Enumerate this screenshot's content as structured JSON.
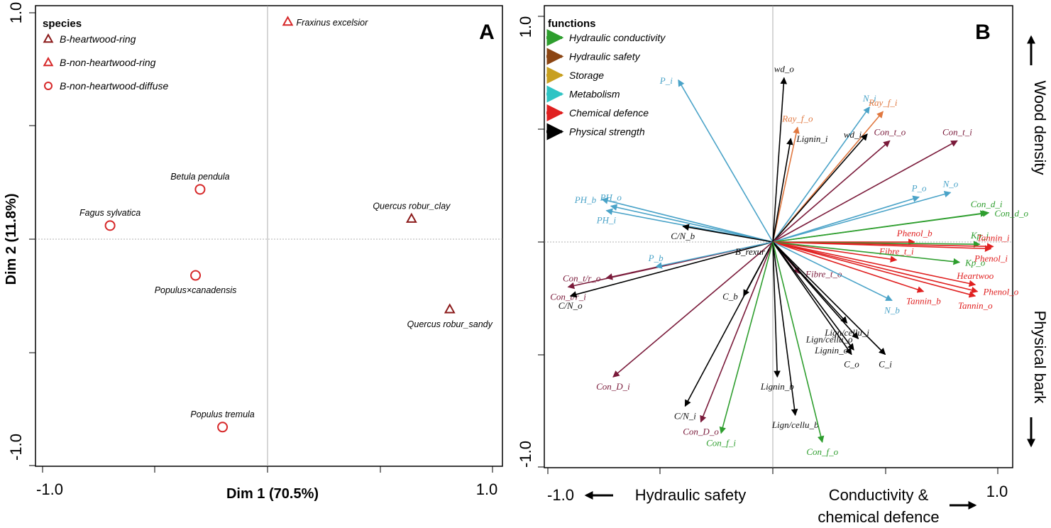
{
  "chart_data": [
    {
      "type": "scatter",
      "panel_label": "A",
      "xlabel": "Dim 1 (70.5%)",
      "ylabel": "Dim 2 (11.8%)",
      "xlim": [
        -1.0,
        1.0
      ],
      "ylim": [
        -1.0,
        1.0
      ],
      "xticks": [
        "-1.0",
        "1.0"
      ],
      "yticks": [
        "1.0",
        "-1.0"
      ],
      "zero_lines": true,
      "legend": {
        "title": "species",
        "position": "top-left",
        "entries": [
          {
            "label": "B-heartwood-ring",
            "marker": "triangle",
            "color": "#8b1a1a"
          },
          {
            "label": "B-non-heartwood-ring",
            "marker": "triangle",
            "color": "#d62728"
          },
          {
            "label": "B-non-heartwood-diffuse",
            "marker": "circle",
            "color": "#d62728"
          }
        ]
      },
      "points": [
        {
          "name": "Fraxinus excelsior",
          "x": 0.09,
          "y": 0.96,
          "marker": "triangle",
          "color": "#d62728",
          "label_side": "right"
        },
        {
          "name": "Betula pendula",
          "x": -0.3,
          "y": 0.22,
          "marker": "circle",
          "color": "#d62728",
          "label_side": "top"
        },
        {
          "name": "Fagus sylvatica",
          "x": -0.7,
          "y": 0.06,
          "marker": "circle",
          "color": "#d62728",
          "label_side": "top"
        },
        {
          "name": "Quercus robur_clay",
          "x": 0.64,
          "y": 0.09,
          "marker": "triangle",
          "color": "#8b1a1a",
          "label_side": "top"
        },
        {
          "name": "Populus×canadensis",
          "x": -0.32,
          "y": -0.16,
          "marker": "circle",
          "color": "#d62728",
          "label_side": "bottom"
        },
        {
          "name": "Quercus robur_sandy",
          "x": 0.81,
          "y": -0.31,
          "marker": "triangle",
          "color": "#8b1a1a",
          "label_side": "bottom"
        },
        {
          "name": "Populus tremula",
          "x": -0.2,
          "y": -0.83,
          "marker": "circle",
          "color": "#d62728",
          "label_side": "top"
        }
      ]
    },
    {
      "type": "scatter",
      "subtype": "biplot-arrows",
      "panel_label": "B",
      "xlim": [
        -1.0,
        1.0
      ],
      "ylim": [
        -1.0,
        1.0
      ],
      "xticks": [
        "-1.0",
        "1.0"
      ],
      "yticks": [
        "1.0",
        "-1.0"
      ],
      "zero_lines": true,
      "side_labels": {
        "top_right": "Wood density",
        "bottom_right": "Physical bark",
        "bottom_left": "Hydraulic safety",
        "bottom_right_1": "Conductivity &",
        "bottom_right_2": "chemical defence"
      },
      "legend": {
        "title": "functions",
        "position": "top-left",
        "entries": [
          {
            "label": "Hydraulic conductivity",
            "color": "#2e9e2e"
          },
          {
            "label": "Hydraulic safety",
            "color": "#8b4513"
          },
          {
            "label": "Storage",
            "color": "#c8a020"
          },
          {
            "label": "Metabolism",
            "color": "#2ec4c4"
          },
          {
            "label": "Chemical defence",
            "color": "#e02020"
          },
          {
            "label": "Physical strength",
            "color": "#000000"
          }
        ]
      },
      "center_label": "B_rexur",
      "vectors": [
        {
          "name": "P_i",
          "x": -0.42,
          "y": 0.72,
          "color": "#4aa3c8",
          "label_side": "left"
        },
        {
          "name": "wd_o",
          "x": 0.05,
          "y": 0.73,
          "color": "#000000",
          "label_side": "top"
        },
        {
          "name": "N_i",
          "x": 0.43,
          "y": 0.6,
          "color": "#4aa3c8",
          "label_side": "top"
        },
        {
          "name": "Ray_f_i",
          "x": 0.49,
          "y": 0.58,
          "color": "#e07840",
          "label_side": "top"
        },
        {
          "name": "Ray_f_o",
          "x": 0.11,
          "y": 0.51,
          "color": "#e07840",
          "label_side": "top"
        },
        {
          "name": "wd_i",
          "x": 0.42,
          "y": 0.48,
          "color": "#000000",
          "label_side": "left"
        },
        {
          "name": "Con_t_o",
          "x": 0.52,
          "y": 0.45,
          "color": "#7a1a3a",
          "label_side": "top"
        },
        {
          "name": "Con_t_i",
          "x": 0.82,
          "y": 0.45,
          "color": "#7a1a3a",
          "label_side": "top"
        },
        {
          "name": "Lignin_i",
          "x": 0.08,
          "y": 0.46,
          "color": "#000000",
          "label_side": "right"
        },
        {
          "name": "PH_b",
          "x": -0.76,
          "y": 0.19,
          "color": "#4aa3c8",
          "label_side": "left"
        },
        {
          "name": "PH_o",
          "x": -0.72,
          "y": 0.16,
          "color": "#4aa3c8",
          "label_side": "top"
        },
        {
          "name": "PH_i",
          "x": -0.74,
          "y": 0.14,
          "color": "#4aa3c8",
          "label_side": "bottom"
        },
        {
          "name": "P_o",
          "x": 0.65,
          "y": 0.2,
          "color": "#4aa3c8",
          "label_side": "top"
        },
        {
          "name": "N_o",
          "x": 0.79,
          "y": 0.22,
          "color": "#4aa3c8",
          "label_side": "top"
        },
        {
          "name": "Con_d_i",
          "x": 0.95,
          "y": 0.13,
          "color": "#2e9e2e",
          "label_side": "top"
        },
        {
          "name": "Con_d_o",
          "x": 0.96,
          "y": 0.13,
          "color": "#2e9e2e",
          "label_side": "right"
        },
        {
          "name": "C/N_b",
          "x": -0.4,
          "y": 0.07,
          "color": "#000000",
          "label_side": "bottom"
        },
        {
          "name": "Phenol_b",
          "x": 0.63,
          "y": 0.0,
          "color": "#e02020",
          "label_side": "top"
        },
        {
          "name": "Kp_i",
          "x": 0.92,
          "y": -0.01,
          "color": "#2e9e2e",
          "label_side": "top"
        },
        {
          "name": "Tannin_i",
          "x": 0.98,
          "y": -0.02,
          "color": "#e02020",
          "label_side": "top"
        },
        {
          "name": "Phenol_i",
          "x": 0.97,
          "y": -0.03,
          "color": "#e02020",
          "label_side": "bottom"
        },
        {
          "name": "Fibre_t_i",
          "x": 0.55,
          "y": -0.08,
          "color": "#e02020",
          "label_side": "top"
        },
        {
          "name": "Kp_o",
          "x": 0.83,
          "y": -0.09,
          "color": "#2e9e2e",
          "label_side": "right"
        },
        {
          "name": "Heartwoo",
          "x": 0.9,
          "y": -0.19,
          "color": "#e02020",
          "label_side": "top"
        },
        {
          "name": "Phenol_o",
          "x": 0.91,
          "y": -0.22,
          "color": "#e02020",
          "label_side": "right"
        },
        {
          "name": "Tannin_b",
          "x": 0.67,
          "y": -0.22,
          "color": "#e02020",
          "label_side": "bottom"
        },
        {
          "name": "Tannin_o",
          "x": 0.9,
          "y": -0.24,
          "color": "#e02020",
          "label_side": "bottom"
        },
        {
          "name": "Fibre_t_o",
          "x": 0.12,
          "y": -0.14,
          "color": "#7a1a3a",
          "label_side": "right"
        },
        {
          "name": "N_b",
          "x": 0.53,
          "y": -0.26,
          "color": "#4aa3c8",
          "label_side": "bottom"
        },
        {
          "name": "Lign/cellu_i",
          "x": 0.33,
          "y": -0.36,
          "color": "#000000",
          "label_side": "bottom"
        },
        {
          "name": "Lign/cellu_o",
          "x": 0.38,
          "y": -0.43,
          "color": "#000000",
          "label_side": "left"
        },
        {
          "name": "Lignin_o",
          "x": 0.36,
          "y": -0.48,
          "color": "#000000",
          "label_side": "left"
        },
        {
          "name": "C_o",
          "x": 0.35,
          "y": -0.5,
          "color": "#000000",
          "label_side": "bottom"
        },
        {
          "name": "C_i",
          "x": 0.5,
          "y": -0.5,
          "color": "#000000",
          "label_side": "bottom"
        },
        {
          "name": "Con_t/r_o",
          "x": -0.74,
          "y": -0.16,
          "color": "#7a1a3a",
          "label_side": "left"
        },
        {
          "name": "Con_t/r_i",
          "x": -0.91,
          "y": -0.2,
          "color": "#7a1a3a",
          "label_side": "bottom"
        },
        {
          "name": "C/N_o",
          "x": -0.9,
          "y": -0.24,
          "color": "#000000",
          "label_side": "bottom"
        },
        {
          "name": "P_b",
          "x": -0.52,
          "y": -0.11,
          "color": "#4aa3c8",
          "label_side": "top"
        },
        {
          "name": "C_b",
          "x": -0.13,
          "y": -0.24,
          "color": "#000000",
          "label_side": "left"
        },
        {
          "name": "Con_D_i",
          "x": -0.71,
          "y": -0.6,
          "color": "#7a1a3a",
          "label_side": "bottom"
        },
        {
          "name": "C/N_i",
          "x": -0.39,
          "y": -0.73,
          "color": "#000000",
          "label_side": "bottom"
        },
        {
          "name": "Con_D_o",
          "x": -0.32,
          "y": -0.8,
          "color": "#7a1a3a",
          "label_side": "bottom"
        },
        {
          "name": "Con_f_i",
          "x": -0.23,
          "y": -0.85,
          "color": "#2e9e2e",
          "label_side": "bottom"
        },
        {
          "name": "Lignin_b",
          "x": 0.02,
          "y": -0.6,
          "color": "#000000",
          "label_side": "bottom"
        },
        {
          "name": "Lign/cellu_b",
          "x": 0.1,
          "y": -0.77,
          "color": "#000000",
          "label_side": "bottom"
        },
        {
          "name": "Con_f_o",
          "x": 0.22,
          "y": -0.89,
          "color": "#2e9e2e",
          "label_side": "bottom"
        }
      ]
    }
  ]
}
